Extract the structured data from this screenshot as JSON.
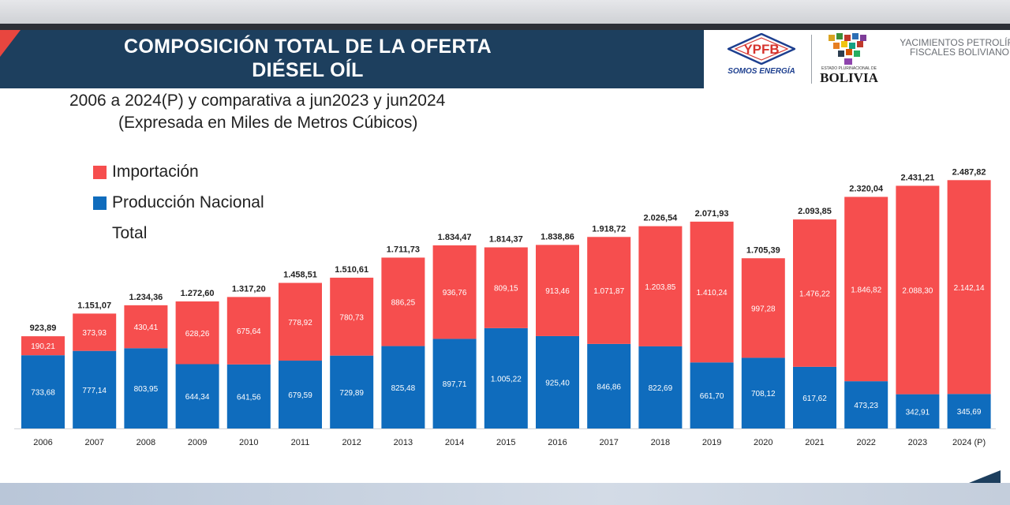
{
  "header": {
    "title_line1": "COMPOSICIÓN TOTAL DE LA OFERTA",
    "title_line2": "DIÉSEL OÍL",
    "ypfb_logo_text": "YPFB",
    "ypfb_slogan": "SOMOS ENERGÍA",
    "bolivia_small": "ESTADO PLURINACIONAL DE",
    "bolivia_word": "BOLIVIA",
    "company_name": "YACIMIENTOS PETROLÍFE\nFISCALES BOLIVIANO"
  },
  "subtitle": "2006 a 2024(P) y comparativa a jun2023 y jun2024",
  "unit": "(Expresada en Miles de Metros Cúbicos)",
  "colors": {
    "importacion": "#f64e4e",
    "produccion": "#0f6cbd",
    "header": "#1d3f5e"
  },
  "chart_data": {
    "type": "bar",
    "stacked": true,
    "categories": [
      "2006",
      "2007",
      "2008",
      "2009",
      "2010",
      "2011",
      "2012",
      "2013",
      "2014",
      "2015",
      "2016",
      "2017",
      "2018",
      "2019",
      "2020",
      "2021",
      "2022",
      "2023",
      "2024 (P)"
    ],
    "series": [
      {
        "name": "Importación",
        "values": [
          190.21,
          373.93,
          430.41,
          628.26,
          675.64,
          778.92,
          780.73,
          886.25,
          936.76,
          809.15,
          913.46,
          1071.87,
          1203.85,
          1410.24,
          997.28,
          1476.22,
          1846.82,
          2088.3,
          2142.14
        ],
        "labels": [
          "190,21",
          "373,93",
          "430,41",
          "628,26",
          "675,64",
          "778,92",
          "780,73",
          "886,25",
          "936,76",
          "809,15",
          "913,46",
          "1.071,87",
          "1.203,85",
          "1.410,24",
          "997,28",
          "1.476,22",
          "1.846,82",
          "2.088,30",
          "2.142,14"
        ]
      },
      {
        "name": "Producción Nacional",
        "values": [
          733.68,
          777.14,
          803.95,
          644.34,
          641.56,
          679.59,
          729.89,
          825.48,
          897.71,
          1005.22,
          925.4,
          846.86,
          822.69,
          661.7,
          708.12,
          617.62,
          473.23,
          342.91,
          345.69
        ],
        "labels": [
          "733,68",
          "777,14",
          "803,95",
          "644,34",
          "641,56",
          "679,59",
          "729,89",
          "825,48",
          "897,71",
          "1.005,22",
          "925,40",
          "846,86",
          "822,69",
          "661,70",
          "708,12",
          "617,62",
          "473,23",
          "342,91",
          "345,69"
        ]
      }
    ],
    "totals": {
      "name": "Total",
      "values": [
        923.89,
        1151.07,
        1234.36,
        1272.6,
        1317.2,
        1458.51,
        1510.61,
        1711.73,
        1834.47,
        1814.37,
        1838.86,
        1918.72,
        2026.54,
        2071.93,
        1705.39,
        2093.85,
        2320.04,
        2431.21,
        2487.82
      ],
      "labels": [
        "923,89",
        "1.151,07",
        "1.234,36",
        "1.272,60",
        "1.317,20",
        "1.458,51",
        "1.510,61",
        "1.711,73",
        "1.834,47",
        "1.814,37",
        "1.838,86",
        "1.918,72",
        "2.026,54",
        "2.071,93",
        "1.705,39",
        "2.093,85",
        "2.320,04",
        "2.431,21",
        "2.487,82"
      ]
    },
    "legend": [
      "Importación",
      "Producción Nacional",
      "Total"
    ],
    "legend_position": "top-left",
    "ylim": [
      0,
      2600
    ],
    "grid": false
  }
}
